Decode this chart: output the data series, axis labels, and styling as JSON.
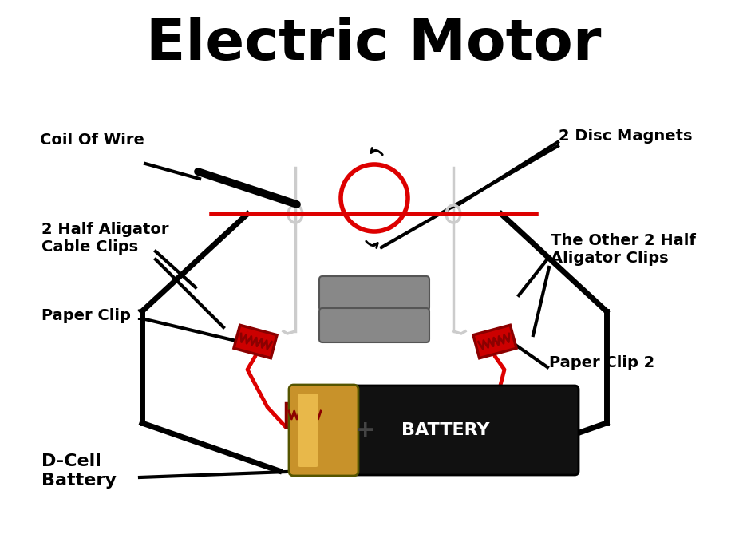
{
  "title": "Electric Motor",
  "title_fontsize": 52,
  "title_fontweight": "bold",
  "bg_color": "#ffffff",
  "labels": {
    "coil_of_wire": "Coil Of Wire",
    "disc_magnets": "2 Disc Magnets",
    "half_aligator": "2 Half Aligator\nCable Clips",
    "other_aligator": "The Other 2 Half\nAligator Clips",
    "paper_clip1": "Paper Clip 1",
    "paper_clip2": "Paper Clip 2",
    "battery": "D-Cell\nBattery"
  },
  "label_fontsize": 14,
  "label_fontweight": "bold",
  "battery_text": "BATTERY",
  "battery_plus": "+",
  "motor_frame_color": "#cccccc",
  "motor_frame_fill": "#f5f5f5",
  "magnet_color": "#888888",
  "magnet_edge": "#555555",
  "red_wire_color": "#dd0000",
  "black_wire_color": "#000000",
  "paperclip_color": "#cc0000",
  "battery_body_color": "#111111",
  "battery_cap_color": "#c8922a",
  "battery_cap_light": "#e8b84a"
}
